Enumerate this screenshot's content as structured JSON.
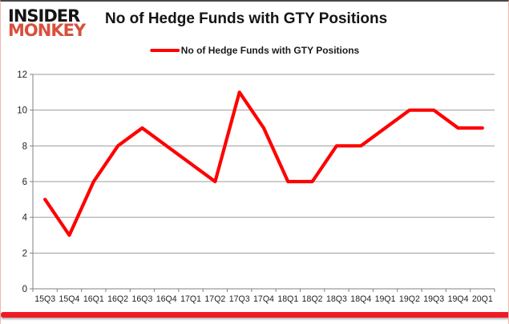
{
  "brand": {
    "line1": "INSIDER",
    "line2": "MONKEY",
    "monkey_color": "#d8503c",
    "insider_color": "#141414"
  },
  "header": {
    "title": "No of Hedge Funds with GTY Positions"
  },
  "legend": {
    "label": "No of Hedge Funds with GTY Positions",
    "line_color": "#fe0000"
  },
  "chart_data": {
    "type": "line",
    "title": "No of Hedge Funds with GTY Positions",
    "categories": [
      "15Q3",
      "15Q4",
      "16Q1",
      "16Q2",
      "16Q3",
      "16Q4",
      "17Q1",
      "17Q2",
      "17Q3",
      "17Q4",
      "18Q1",
      "18Q2",
      "18Q3",
      "18Q4",
      "19Q1",
      "19Q2",
      "19Q3",
      "19Q4",
      "20Q1"
    ],
    "series": [
      {
        "name": "No of Hedge Funds with GTY Positions",
        "color": "#fe0000",
        "values": [
          5,
          3,
          6,
          8,
          9,
          8,
          7,
          6,
          11,
          9,
          6,
          6,
          8,
          8,
          9,
          10,
          10,
          9,
          9
        ]
      }
    ],
    "xlabel": "",
    "ylabel": "",
    "ylim": [
      0,
      12
    ],
    "ytick_interval": 2,
    "yticks": [
      0,
      2,
      4,
      6,
      8,
      10,
      12
    ],
    "grid": true,
    "legend_position": "top-center",
    "gridline_color": "#9d9d9d",
    "axis_color": "#808080",
    "tick_label_color": "#1f1f1f"
  },
  "footer": {
    "bar_color": "#ee1c25"
  }
}
